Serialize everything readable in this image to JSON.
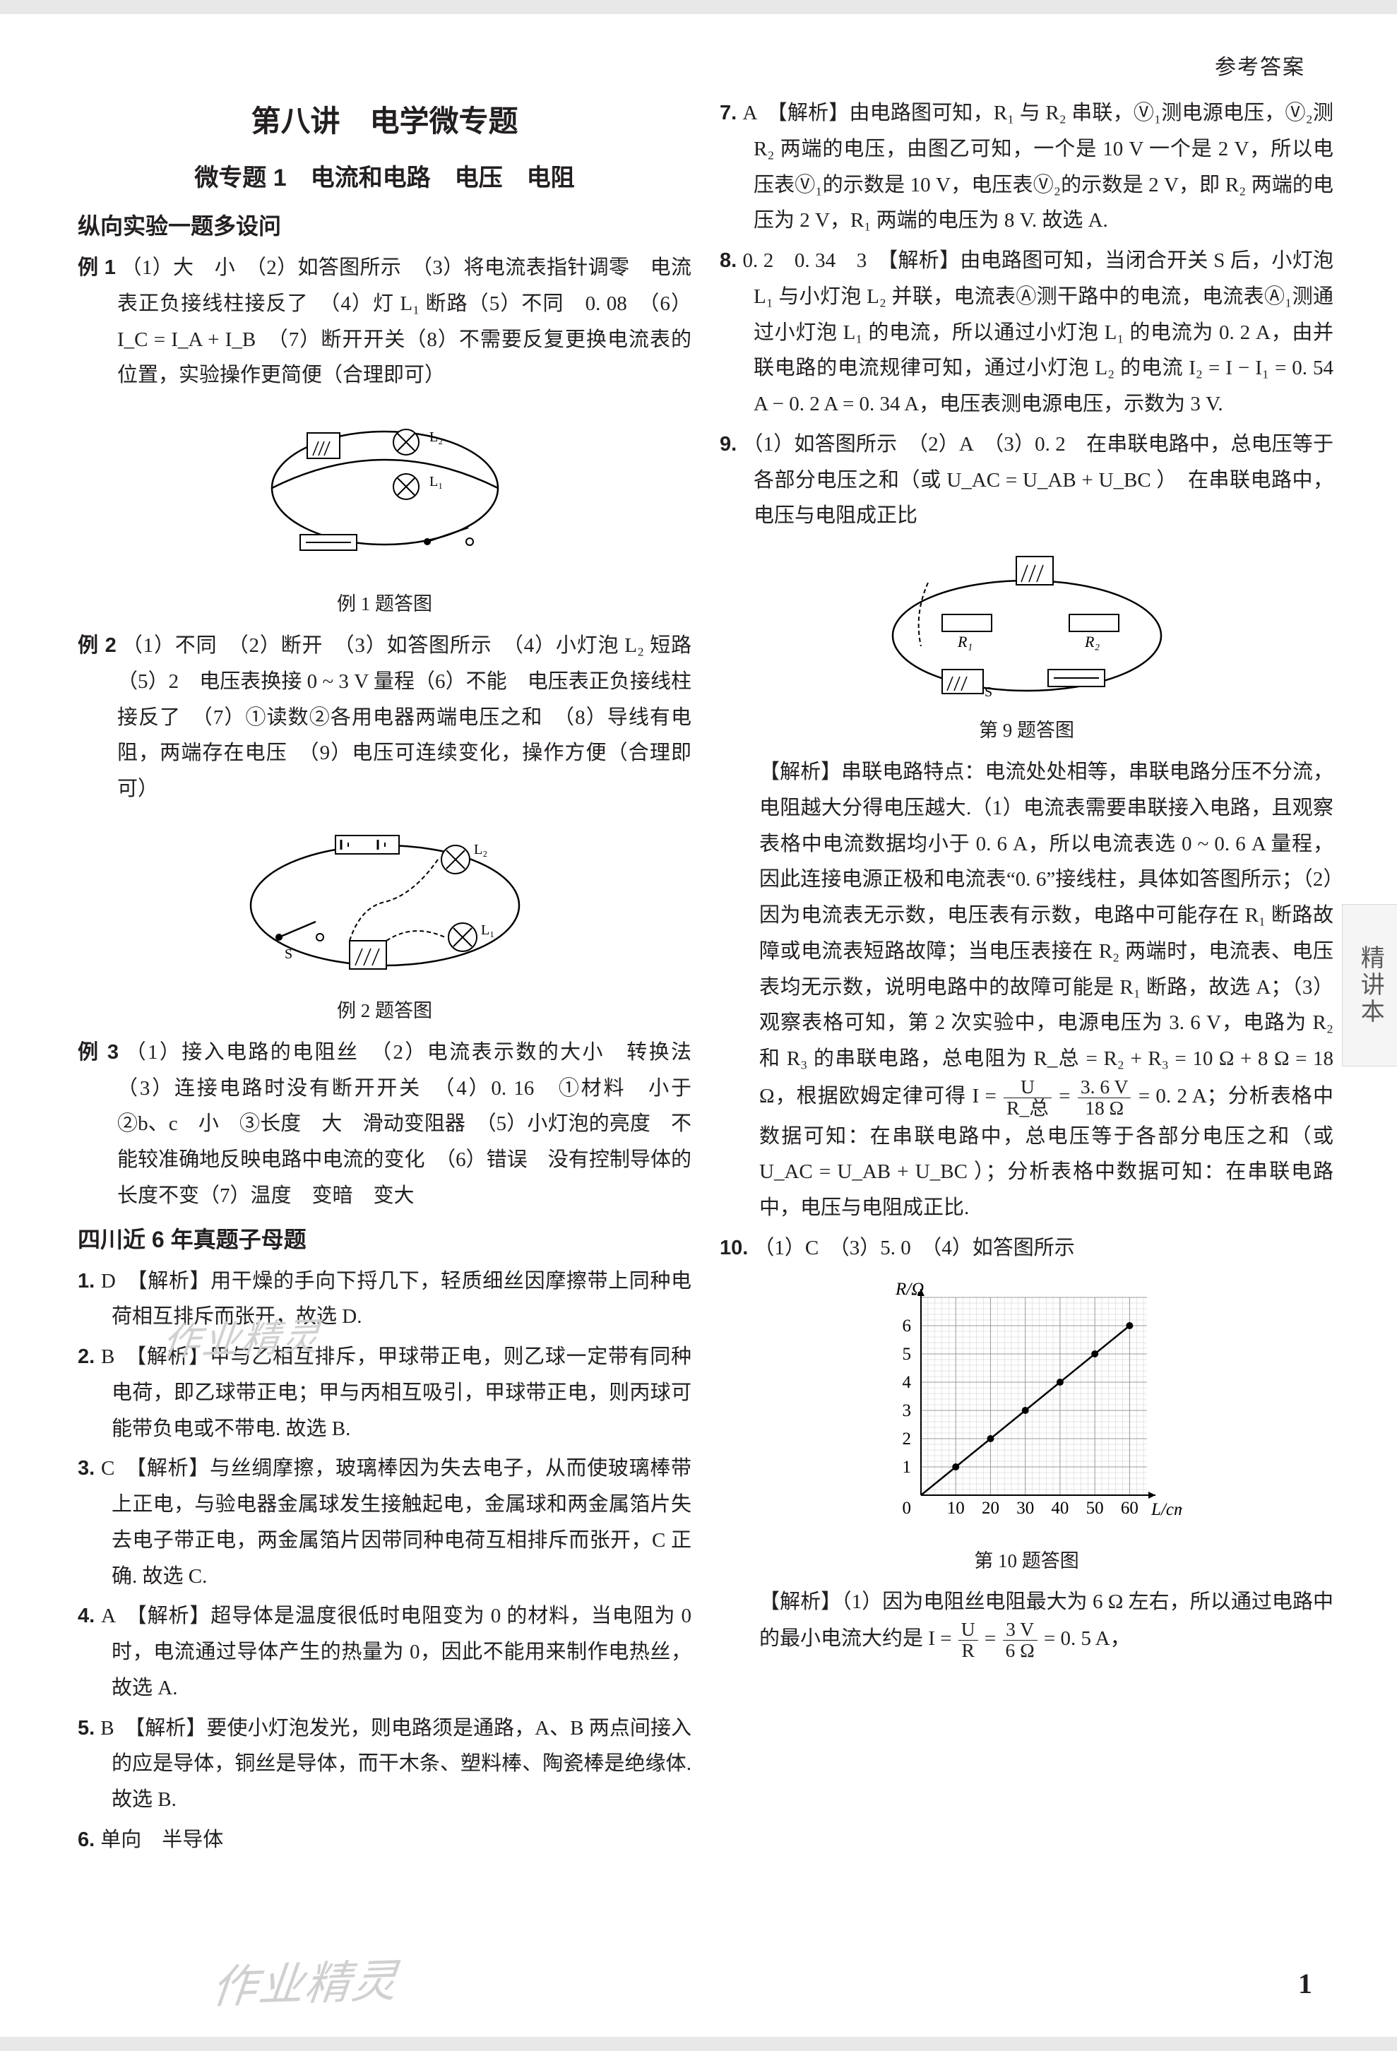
{
  "header": {
    "right": "参考答案"
  },
  "side_tab": "精讲本",
  "page_number": "1",
  "watermarks": {
    "w1": "作业精灵",
    "w2": "作业精灵"
  },
  "left": {
    "title_main": "第八讲　电学微专题",
    "title_sub": "微专题 1　电流和电路　电压　电阻",
    "sec_a": "纵向实验一题多设问",
    "ex1_lead": "例 1",
    "ex1_body": "（1）大　小　（2）如答图所示　（3）将电流表指针调零　电流表正负接线柱接反了　（4）灯 L₁ 断路（5）不同　0. 08　（6）I_C = I_A + I_B　（7）断开开关（8）不需要反复更换电流表的位置，实验操作更简便（合理即可）",
    "fig1_caption": "例 1 题答图",
    "ex2_lead": "例 2",
    "ex2_body": "（1）不同　（2）断开　（3）如答图所示　（4）小灯泡 L₂ 短路　（5）2　电压表换接 0 ~ 3 V 量程（6）不能　电压表正负接线柱接反了　（7）①读数②各用电器两端电压之和　（8）导线有电阻，两端存在电压　（9）电压可连续变化，操作方便（合理即可）",
    "fig2_caption": "例 2 题答图",
    "ex3_lead": "例 3",
    "ex3_body": "（1）接入电路的电阻丝　（2）电流表示数的大小　转换法　（3）连接电路时没有断开开关　（4）0. 16　①材料　小于　②b、c　小　③长度　大　滑动变阻器　（5）小灯泡的亮度　不能较准确地反映电路中电流的变化　（6）错误　没有控制导体的长度不变（7）温度　变暗　变大",
    "sec_b": "四川近 6 年真题子母题",
    "q1_lead": "1. ",
    "q1_body": "D　【解析】用干燥的手向下捋几下，轻质细丝因摩擦带上同种电荷相互排斥而张开，故选 D.",
    "q2_lead": "2. ",
    "q2_body": "B　【解析】甲与乙相互排斥，甲球带正电，则乙球一定带有同种电荷，即乙球带正电；甲与丙相互吸引，甲球带正电，则丙球可能带负电或不带电. 故选 B.",
    "q3_lead": "3. ",
    "q3_body": "C　【解析】与丝绸摩擦，玻璃棒因为失去电子，从而使玻璃棒带上正电，与验电器金属球发生接触起电，金属球和两金属箔片失去电子带正电，两金属箔片因带同种电荷互相排斥而张开，C 正确. 故选 C.",
    "q4_lead": "4. ",
    "q4_body": "A　【解析】超导体是温度很低时电阻变为 0 的材料，当电阻为 0 时，电流通过导体产生的热量为 0，因此不能用来制作电热丝，故选 A.",
    "q5_lead": "5. ",
    "q5_body": "B　【解析】要使小灯泡发光，则电路须是通路，A、B 两点间接入的应是导体，铜丝是导体，而干木条、塑料棒、陶瓷棒是绝缘体. 故选 B.",
    "q6_lead": "6. ",
    "q6_body": "单向　半导体"
  },
  "right": {
    "q7_lead": "7. ",
    "q7_body": "A　【解析】由电路图可知，R₁ 与 R₂ 串联，Ⓥ₁测电源电压，Ⓥ₂测 R₂ 两端的电压，由图乙可知，一个是 10 V 一个是 2 V，所以电压表Ⓥ₁的示数是 10 V，电压表Ⓥ₂的示数是 2 V，即 R₂ 两端的电压为 2 V，R₁ 两端的电压为 8 V. 故选 A.",
    "q8_lead": "8. ",
    "q8_body": "0. 2　0. 34　3　【解析】由电路图可知，当闭合开关 S 后，小灯泡 L₁ 与小灯泡 L₂ 并联，电流表Ⓐ测干路中的电流，电流表Ⓐ₁测通过小灯泡 L₁ 的电流，所以通过小灯泡 L₁ 的电流为 0. 2 A，由并联电路的电流规律可知，通过小灯泡 L₂ 的电流 I₂ = I − I₁ = 0. 54 A − 0. 2 A = 0. 34 A，电压表测电源电压，示数为 3 V.",
    "q9_lead": "9. ",
    "q9_a": "（1）如答图所示　（2）A　（3）0. 2　在串联电路中，总电压等于各部分电压之和（或 U_AC = U_AB + U_BC ）　在串联电路中，电压与电阻成正比",
    "fig9_caption": "第 9 题答图",
    "q9_b_pre": "【解析】串联电路特点：电流处处相等，串联电路分压不分流，电阻越大分得电压越大.（1）电流表需要串联接入电路，且观察表格中电流数据均小于 0. 6 A，所以电流表选 0 ~ 0. 6 A 量程，因此连接电源正极和电流表“0. 6”接线柱，具体如答图所示；（2）因为电流表无示数，电压表有示数，电路中可能存在 R₁ 断路故障或电流表短路故障；当电压表接在 R₂ 两端时，电流表、电压表均无示数，说明电路中的故障可能是 R₁ 断路，故选 A；（3）观察表格可知，第 2 次实验中，电源电压为 3. 6 V，电路为 R₂ 和 R₃ 的串联电路，总电阻为 R_总 = R₂ + R₃ = 10 Ω + 8 Ω = 18 Ω，根据欧姆定律可得 I = ",
    "q9_frac1_num": "U",
    "q9_frac1_den": "R_总",
    "q9_mid": " = ",
    "q9_frac2_num": "3. 6 V",
    "q9_frac2_den": "18 Ω",
    "q9_b_post": " = 0. 2 A；分析表格中数据可知：在串联电路中，总电压等于各部分电压之和（或 U_AC = U_AB + U_BC ）；分析表格中数据可知：在串联电路中，电压与电阻成正比.",
    "q10_lead": "10. ",
    "q10_a": "（1）C　（3）5. 0　（4）如答图所示",
    "chart": {
      "type": "scatter-line",
      "x_label": "L/cm",
      "y_label": "R/Ω",
      "xlim": [
        0,
        65
      ],
      "ylim": [
        0,
        7
      ],
      "xticks": [
        10,
        20,
        30,
        40,
        50,
        60
      ],
      "yticks": [
        1,
        2,
        3,
        4,
        5,
        6
      ],
      "points": [
        [
          10,
          1
        ],
        [
          20,
          2
        ],
        [
          30,
          3
        ],
        [
          40,
          4
        ],
        [
          50,
          5
        ],
        [
          60,
          6
        ]
      ],
      "grid_color": "#999999",
      "minor_grid_color": "#cccccc",
      "line_color": "#000000",
      "point_color": "#000000",
      "bg_color": "#ffffff",
      "axis_fontsize": 25
    },
    "fig10_caption": "第 10 题答图",
    "q10_b_pre": "【解析】（1）因为电阻丝电阻最大为 6 Ω 左右，所以通过电路中的最小电流大约是 I = ",
    "q10_frac1_num": "U",
    "q10_frac1_den": "R",
    "q10_mid1": " = ",
    "q10_frac2_num": "3 V",
    "q10_frac2_den": "6 Ω",
    "q10_b_post": " = 0. 5 A，"
  }
}
